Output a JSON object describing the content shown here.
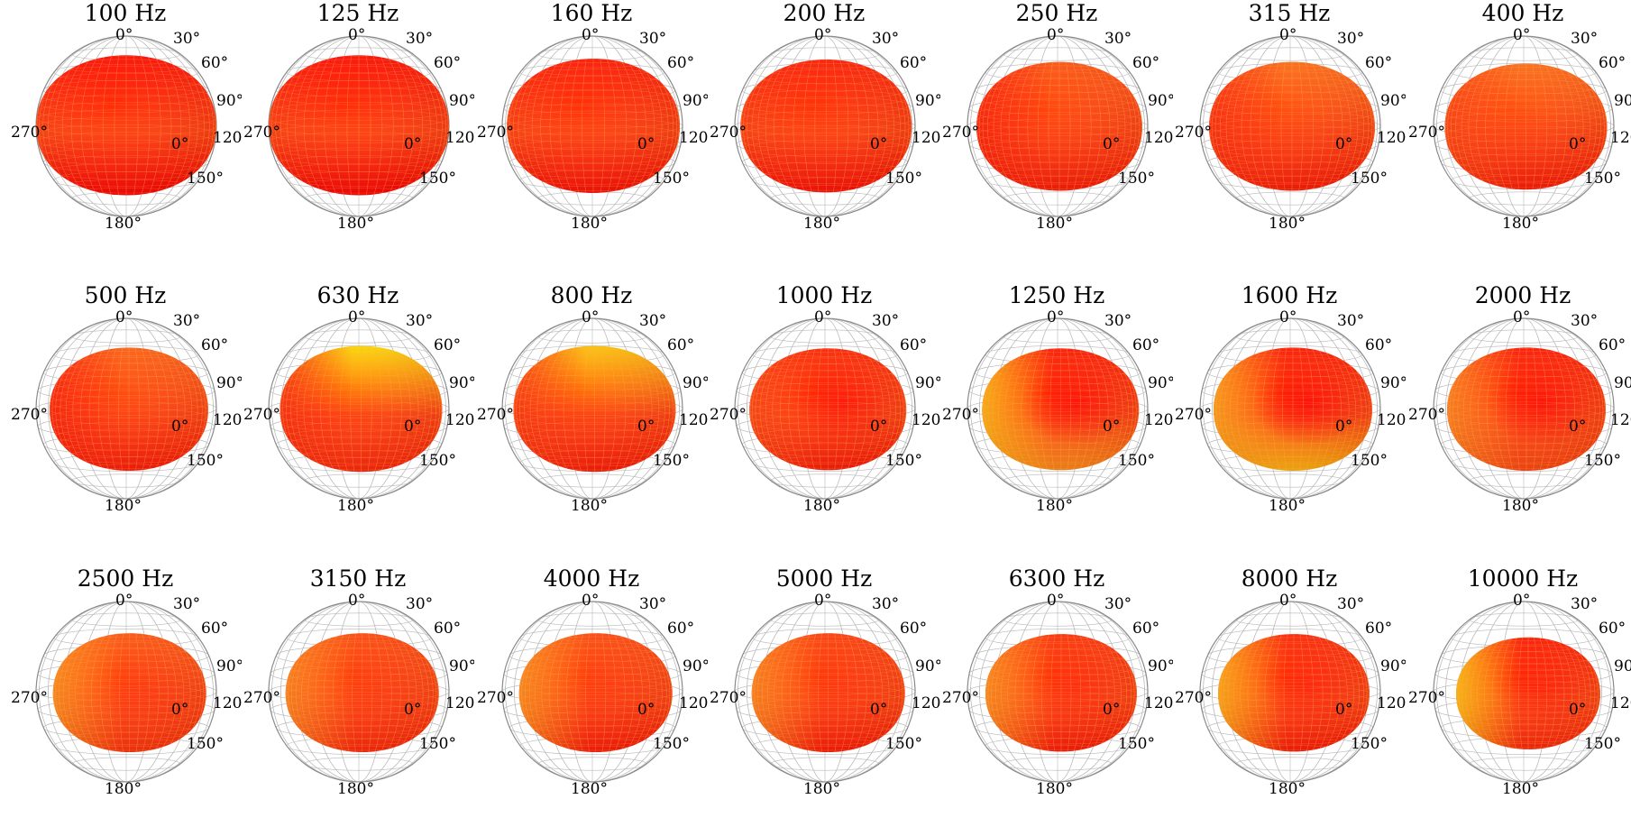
{
  "chart_data": {
    "type": "other",
    "layout": {
      "rows": 3,
      "cols": 7
    },
    "colors": {
      "low": "#ff0000",
      "mid": "#ff7a1a",
      "high": "#ffee00",
      "wire": "#b8b8b8"
    },
    "angle_labels": {
      "top": "0°",
      "r30": "30°",
      "r60": "60°",
      "r90": "90°",
      "r120": "120°",
      "r150": "150°",
      "bottom": "180°",
      "left": "270°",
      "center": "0°"
    },
    "panels": [
      {
        "title": "100 Hz",
        "pattern": {
          "radius": 1.0,
          "top": 0.05,
          "left": 0.0,
          "right": 0.0,
          "bottom": 0.0,
          "blob": 0.0
        }
      },
      {
        "title": "125 Hz",
        "pattern": {
          "radius": 1.0,
          "top": 0.05,
          "left": 0.0,
          "right": 0.0,
          "bottom": 0.0,
          "blob": 0.0
        }
      },
      {
        "title": "160 Hz",
        "pattern": {
          "radius": 0.96,
          "top": 0.1,
          "left": 0.05,
          "right": 0.0,
          "bottom": 0.05,
          "blob": 0.0
        }
      },
      {
        "title": "200 Hz",
        "pattern": {
          "radius": 0.95,
          "top": 0.12,
          "left": 0.05,
          "right": 0.0,
          "bottom": 0.05,
          "blob": 0.0
        }
      },
      {
        "title": "250 Hz",
        "pattern": {
          "radius": 0.92,
          "top": 0.35,
          "left": 0.1,
          "right": 0.05,
          "bottom": 0.1,
          "blob": 0.0
        }
      },
      {
        "title": "315 Hz",
        "pattern": {
          "radius": 0.92,
          "top": 0.45,
          "left": 0.15,
          "right": 0.05,
          "bottom": 0.1,
          "blob": 0.0
        }
      },
      {
        "title": "400 Hz",
        "pattern": {
          "radius": 0.9,
          "top": 0.45,
          "left": 0.25,
          "right": 0.05,
          "bottom": 0.1,
          "blob": 0.0
        }
      },
      {
        "title": "500 Hz",
        "pattern": {
          "radius": 0.88,
          "top": 0.4,
          "left": 0.1,
          "right": 0.05,
          "bottom": 0.1,
          "blob": 0.0
        }
      },
      {
        "title": "630 Hz",
        "pattern": {
          "radius": 0.9,
          "top": 0.95,
          "left": 0.15,
          "right": 0.05,
          "bottom": 0.15,
          "blob": 0.0
        }
      },
      {
        "title": "800 Hz",
        "pattern": {
          "radius": 0.9,
          "top": 0.85,
          "left": 0.2,
          "right": 0.05,
          "bottom": 0.1,
          "blob": 0.0
        }
      },
      {
        "title": "1000 Hz",
        "pattern": {
          "radius": 0.87,
          "top": 0.15,
          "left": 0.25,
          "right": 0.0,
          "bottom": 0.1,
          "blob": 0.7
        }
      },
      {
        "title": "1250 Hz",
        "pattern": {
          "radius": 0.87,
          "top": 0.1,
          "left": 0.8,
          "right": 0.0,
          "bottom": 0.6,
          "blob": 0.8
        }
      },
      {
        "title": "1600 Hz",
        "pattern": {
          "radius": 0.88,
          "top": 0.1,
          "left": 0.7,
          "right": 0.0,
          "bottom": 0.8,
          "blob": 0.85
        }
      },
      {
        "title": "2000 Hz",
        "pattern": {
          "radius": 0.88,
          "top": 0.1,
          "left": 0.55,
          "right": 0.0,
          "bottom": 0.3,
          "blob": 0.8
        }
      },
      {
        "title": "2500 Hz",
        "pattern": {
          "radius": 0.85,
          "top": 0.35,
          "left": 0.6,
          "right": 0.05,
          "bottom": 0.2,
          "blob": 0.2
        }
      },
      {
        "title": "3150 Hz",
        "pattern": {
          "radius": 0.85,
          "top": 0.3,
          "left": 0.55,
          "right": 0.05,
          "bottom": 0.15,
          "blob": 0.15
        }
      },
      {
        "title": "4000 Hz",
        "pattern": {
          "radius": 0.85,
          "top": 0.3,
          "left": 0.6,
          "right": 0.05,
          "bottom": 0.1,
          "blob": 0.15
        }
      },
      {
        "title": "5000 Hz",
        "pattern": {
          "radius": 0.85,
          "top": 0.25,
          "left": 0.55,
          "right": 0.05,
          "bottom": 0.1,
          "blob": 0.2
        }
      },
      {
        "title": "6300 Hz",
        "pattern": {
          "radius": 0.84,
          "top": 0.2,
          "left": 0.6,
          "right": 0.0,
          "bottom": 0.1,
          "blob": 0.35
        }
      },
      {
        "title": "8000 Hz",
        "pattern": {
          "radius": 0.84,
          "top": 0.15,
          "left": 0.75,
          "right": 0.0,
          "bottom": 0.1,
          "blob": 0.45
        }
      },
      {
        "title": "10000 Hz",
        "pattern": {
          "radius": 0.8,
          "top": 0.1,
          "left": 0.85,
          "right": 0.0,
          "bottom": 0.15,
          "blob": 0.5
        }
      }
    ]
  }
}
